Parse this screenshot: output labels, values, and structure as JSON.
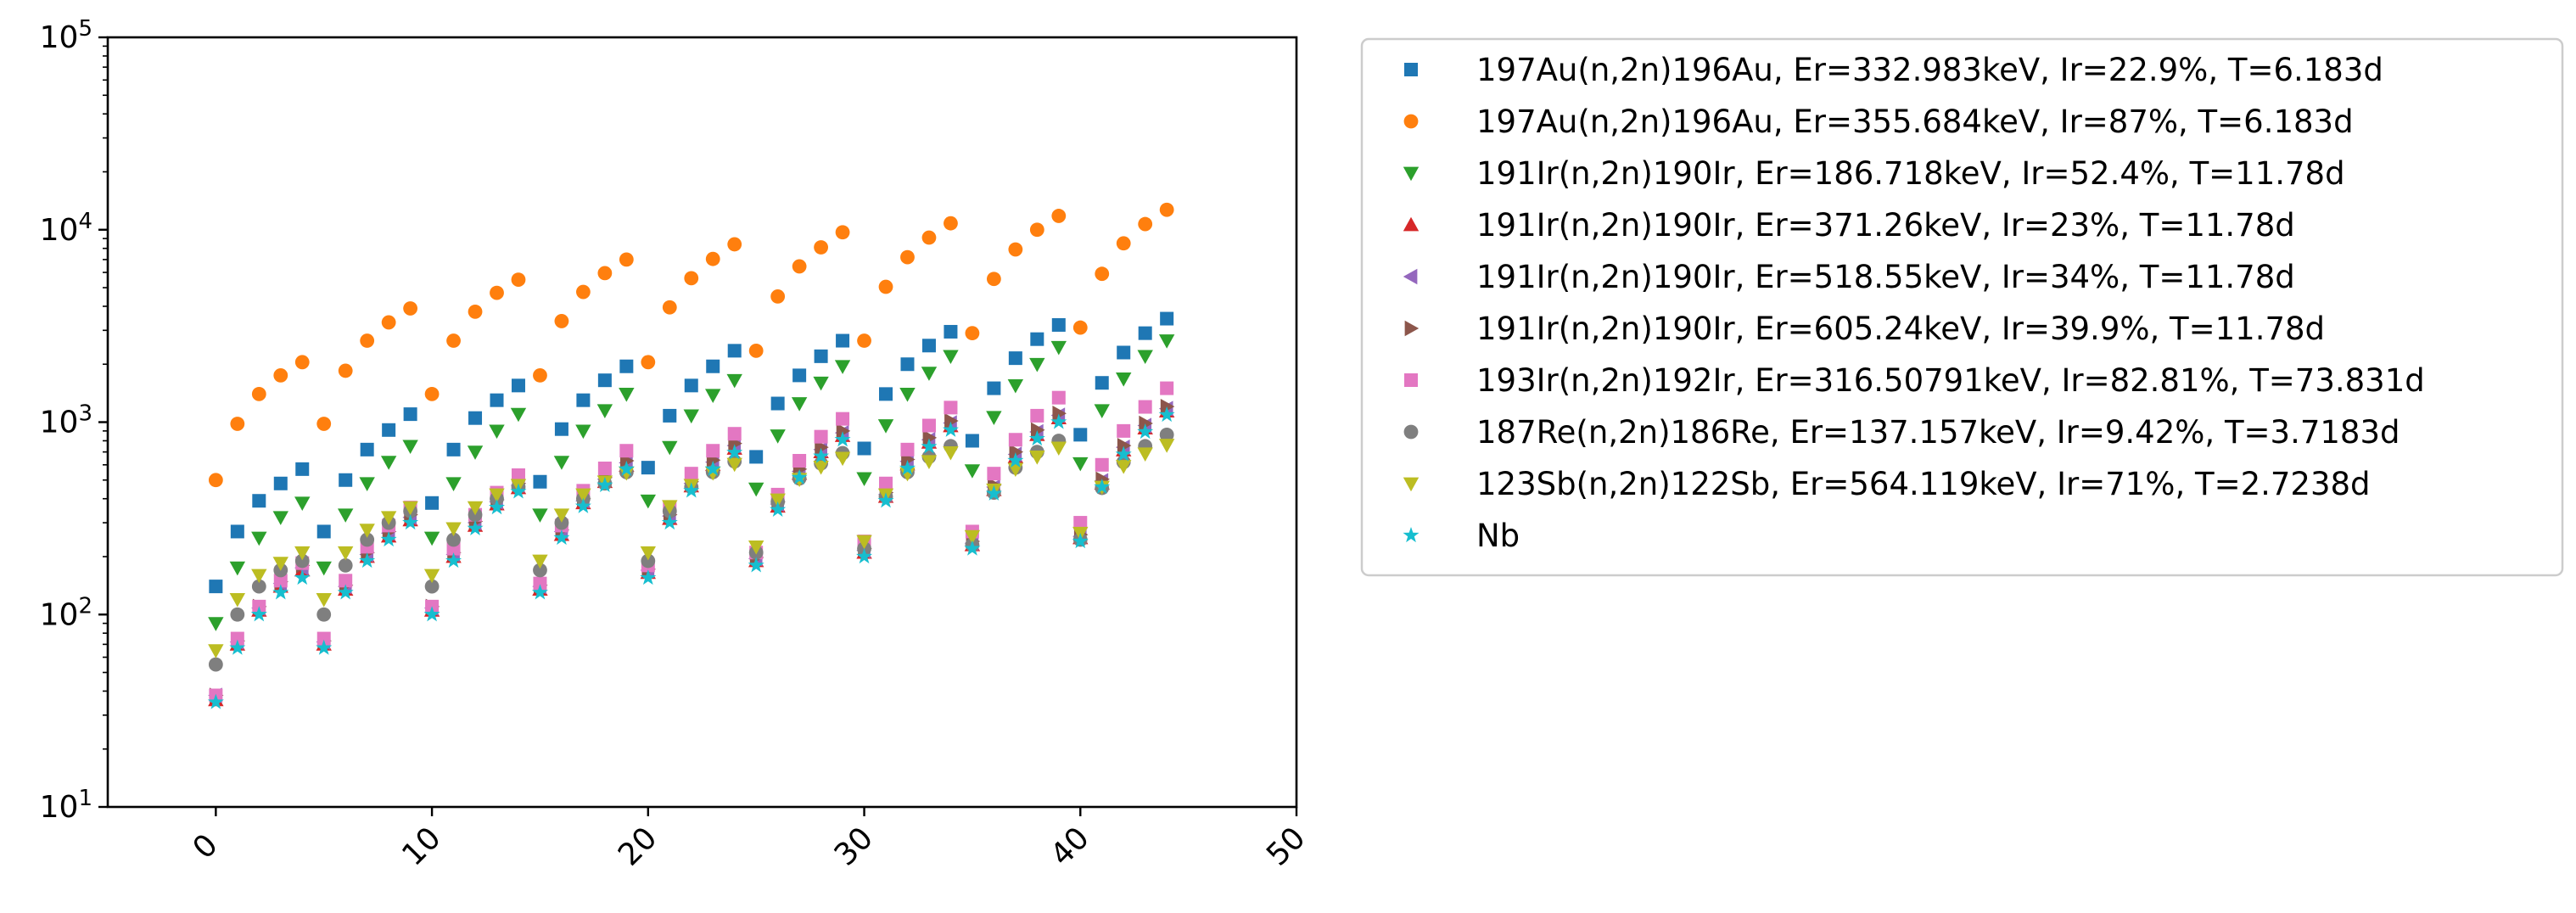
{
  "chart_data": {
    "type": "scatter",
    "title": "",
    "xlabel": "",
    "ylabel": "",
    "x_scale": "linear",
    "y_scale": "log",
    "xlim": [
      -5,
      50
    ],
    "ylim": [
      10,
      100000
    ],
    "x_ticks": [
      {
        "value": 0,
        "label": "0"
      },
      {
        "value": 10,
        "label": "10"
      },
      {
        "value": 20,
        "label": "20"
      },
      {
        "value": 30,
        "label": "30"
      },
      {
        "value": 40,
        "label": "40"
      },
      {
        "value": 50,
        "label": "50"
      }
    ],
    "y_ticks": [
      {
        "value": 10,
        "mantissa": "10",
        "exponent": "1"
      },
      {
        "value": 100,
        "mantissa": "10",
        "exponent": "2"
      },
      {
        "value": 1000,
        "mantissa": "10",
        "exponent": "3"
      },
      {
        "value": 10000,
        "mantissa": "10",
        "exponent": "4"
      },
      {
        "value": 100000,
        "mantissa": "10",
        "exponent": "5"
      }
    ],
    "grid": false,
    "legend_position": "outside-right",
    "x": [
      0,
      1,
      2,
      3,
      4,
      5,
      6,
      7,
      8,
      9,
      10,
      11,
      12,
      13,
      14,
      15,
      16,
      17,
      18,
      19,
      20,
      21,
      22,
      23,
      24,
      25,
      26,
      27,
      28,
      29,
      30,
      31,
      32,
      33,
      34,
      35,
      36,
      37,
      38,
      39,
      40,
      41,
      42,
      43,
      44
    ],
    "series": [
      {
        "name": "197Au(n,2n)196Au, Er=332.983keV, Ir=22.9%, T=6.183d",
        "color": "#1f77b4",
        "marker": "square",
        "values": [
          140,
          270,
          390,
          480,
          570,
          270,
          500,
          720,
          910,
          1100,
          380,
          720,
          1050,
          1300,
          1550,
          490,
          920,
          1300,
          1650,
          1950,
          580,
          1080,
          1550,
          1950,
          2350,
          660,
          1250,
          1750,
          2200,
          2650,
          730,
          1400,
          2000,
          2500,
          2950,
          800,
          1500,
          2150,
          2700,
          3200,
          860,
          1600,
          2300,
          2900,
          3450
        ]
      },
      {
        "name": "197Au(n,2n)196Au, Er=355.684keV, Ir=87%, T=6.183d",
        "color": "#ff7f0e",
        "marker": "circle",
        "values": [
          500,
          980,
          1400,
          1750,
          2050,
          980,
          1850,
          2650,
          3300,
          3900,
          1400,
          2650,
          3750,
          4700,
          5500,
          1750,
          3350,
          4750,
          5950,
          7000,
          2050,
          3950,
          5600,
          7050,
          8400,
          2350,
          4500,
          6450,
          8100,
          9700,
          2650,
          5050,
          7200,
          9100,
          10800,
          2900,
          5550,
          7900,
          10000,
          11800,
          3100,
          5900,
          8500,
          10700,
          12700
        ]
      },
      {
        "name": "191Ir(n,2n)190Ir, Er=186.718keV, Ir=52.4%, T=11.78d",
        "color": "#2ca02c",
        "marker": "triangle-down",
        "values": [
          90,
          175,
          250,
          320,
          380,
          175,
          330,
          480,
          620,
          750,
          250,
          480,
          700,
          900,
          1100,
          330,
          620,
          900,
          1150,
          1400,
          390,
          740,
          1080,
          1380,
          1650,
          450,
          850,
          1250,
          1600,
          1950,
          510,
          960,
          1400,
          1800,
          2200,
          560,
          1060,
          1550,
          2000,
          2450,
          610,
          1150,
          1680,
          2200,
          2650
        ]
      },
      {
        "name": "191Ir(n,2n)190Ir, Er=371.26keV, Ir=23%, T=11.78d",
        "color": "#d62728",
        "marker": "triangle-up",
        "values": [
          36,
          70,
          105,
          140,
          170,
          70,
          135,
          200,
          255,
          310,
          105,
          200,
          290,
          375,
          455,
          135,
          260,
          380,
          490,
          595,
          165,
          315,
          465,
          600,
          730,
          190,
          365,
          540,
          700,
          850,
          210,
          410,
          605,
          785,
          955,
          230,
          445,
          660,
          860,
          1050,
          250,
          480,
          715,
          930,
          1140
        ]
      },
      {
        "name": "191Ir(n,2n)190Ir, Er=518.55keV, Ir=34%, T=11.78d",
        "color": "#9467bd",
        "marker": "triangle-left",
        "values": [
          38,
          72,
          108,
          145,
          175,
          72,
          140,
          205,
          265,
          320,
          108,
          205,
          300,
          385,
          470,
          140,
          270,
          390,
          505,
          615,
          170,
          325,
          480,
          620,
          755,
          195,
          375,
          555,
          720,
          880,
          215,
          420,
          625,
          810,
          990,
          235,
          460,
          680,
          890,
          1085,
          255,
          495,
          740,
          960,
          1175
        ]
      },
      {
        "name": "191Ir(n,2n)190Ir, Er=605.24keV, Ir=39.9%, T=11.78d",
        "color": "#8c564b",
        "marker": "triangle-right",
        "values": [
          38,
          73,
          110,
          148,
          180,
          73,
          142,
          210,
          270,
          330,
          110,
          210,
          305,
          395,
          480,
          142,
          275,
          400,
          515,
          630,
          172,
          330,
          490,
          635,
          775,
          198,
          385,
          570,
          740,
          900,
          220,
          430,
          640,
          830,
          1015,
          240,
          470,
          700,
          910,
          1110,
          260,
          505,
          755,
          985,
          1205
        ]
      },
      {
        "name": "193Ir(n,2n)192Ir, Er=316.50791keV, Ir=82.81%, T=73.831d",
        "color": "#e377c2",
        "marker": "square",
        "values": [
          38,
          75,
          110,
          150,
          185,
          75,
          150,
          225,
          290,
          360,
          110,
          220,
          330,
          430,
          530,
          145,
          290,
          440,
          575,
          710,
          180,
          360,
          540,
          710,
          870,
          210,
          420,
          630,
          840,
          1040,
          240,
          480,
          720,
          960,
          1190,
          270,
          540,
          810,
          1080,
          1340,
          300,
          600,
          900,
          1200,
          1500
        ]
      },
      {
        "name": "187Re(n,2n)186Re, Er=137.157keV, Ir=9.42%, T=3.7183d",
        "color": "#7f7f7f",
        "marker": "circle",
        "values": [
          55,
          100,
          140,
          170,
          190,
          100,
          180,
          245,
          300,
          345,
          140,
          245,
          330,
          400,
          460,
          170,
          300,
          400,
          480,
          550,
          190,
          345,
          460,
          550,
          625,
          210,
          385,
          510,
          610,
          690,
          220,
          410,
          550,
          660,
          750,
          230,
          430,
          580,
          700,
          800,
          245,
          455,
          620,
          750,
          860
        ]
      },
      {
        "name": "123Sb(n,2n)122Sb, Er=564.119keV, Ir=71%, T=2.7238d",
        "color": "#bcbd22",
        "marker": "triangle-down",
        "values": [
          65,
          120,
          160,
          185,
          210,
          120,
          210,
          275,
          320,
          360,
          160,
          280,
          360,
          420,
          470,
          190,
          330,
          420,
          490,
          545,
          210,
          365,
          470,
          545,
          605,
          225,
          395,
          505,
          585,
          650,
          240,
          420,
          540,
          625,
          695,
          255,
          445,
          570,
          660,
          735,
          265,
          460,
          590,
          685,
          760
        ]
      },
      {
        "name": "Nb",
        "color": "#17becf",
        "marker": "star",
        "values": [
          35,
          67,
          100,
          130,
          155,
          67,
          130,
          190,
          245,
          300,
          100,
          190,
          280,
          360,
          435,
          130,
          250,
          365,
          470,
          570,
          155,
          300,
          440,
          570,
          695,
          180,
          350,
          515,
          665,
          810,
          200,
          390,
          575,
          745,
          910,
          220,
          425,
          630,
          820,
          1000,
          240,
          460,
          680,
          890,
          1090
        ]
      }
    ]
  }
}
